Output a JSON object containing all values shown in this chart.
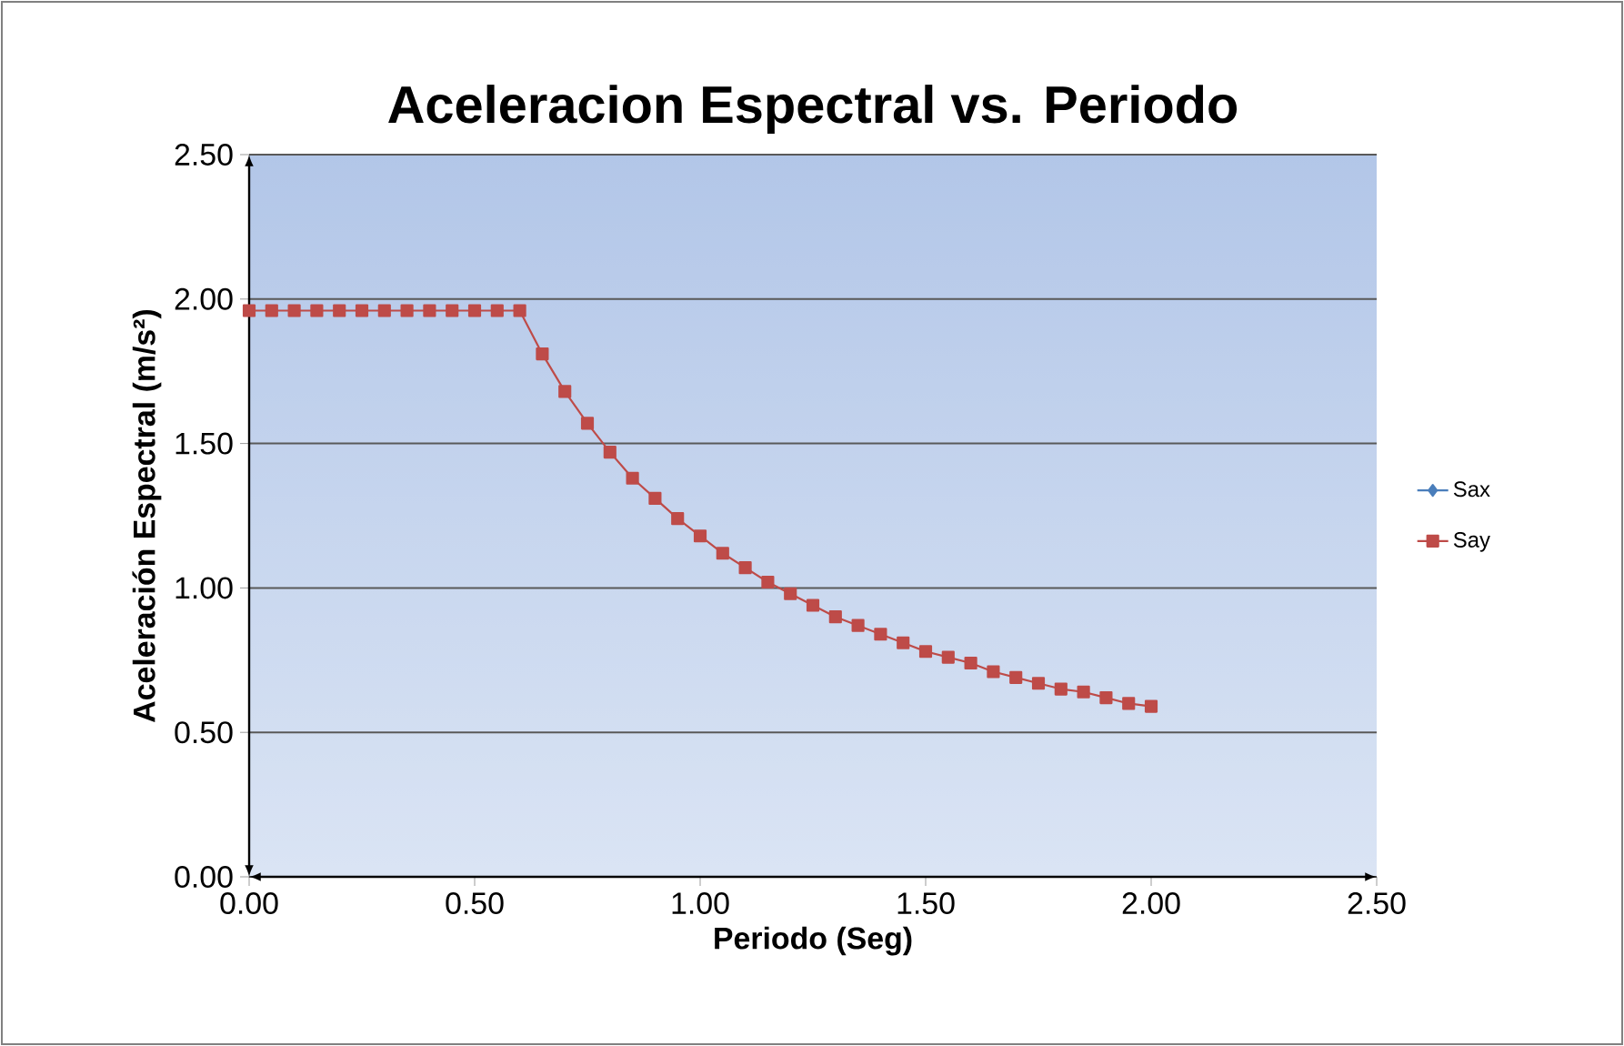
{
  "chart_data": {
    "type": "line",
    "title": "Aceleracion Espectral vs. Periodo",
    "xlabel": "Periodo (Seg)",
    "ylabel": "Aceleración Espectral (m/s²)",
    "x": [
      0,
      0.05,
      0.1,
      0.15,
      0.2,
      0.25,
      0.3,
      0.35,
      0.4,
      0.45,
      0.5,
      0.55,
      0.6,
      0.65,
      0.7,
      0.75,
      0.8,
      0.85,
      0.9,
      0.95,
      1.0,
      1.05,
      1.1,
      1.15,
      1.2,
      1.25,
      1.3,
      1.35,
      1.4,
      1.45,
      1.5,
      1.55,
      1.6,
      1.65,
      1.7,
      1.75,
      1.8,
      1.85,
      1.9,
      1.95,
      2.0
    ],
    "series": [
      {
        "name": "Sax",
        "color": "#4a7ebb",
        "marker": "diamond",
        "values": [
          null,
          null,
          null,
          null,
          null,
          null,
          null,
          null,
          null,
          null,
          null,
          null,
          null,
          null,
          null,
          null,
          null,
          null,
          null,
          null,
          null,
          null,
          null,
          null,
          null,
          null,
          null,
          null,
          null,
          null,
          null,
          null,
          null,
          null,
          null,
          null,
          null,
          null,
          null,
          null,
          null
        ]
      },
      {
        "name": "Say",
        "color": "#be4b48",
        "marker": "square",
        "values": [
          1.96,
          1.96,
          1.96,
          1.96,
          1.96,
          1.96,
          1.96,
          1.96,
          1.96,
          1.96,
          1.96,
          1.96,
          1.96,
          1.81,
          1.68,
          1.57,
          1.47,
          1.38,
          1.31,
          1.24,
          1.18,
          1.12,
          1.07,
          1.02,
          0.98,
          0.94,
          0.9,
          0.87,
          0.84,
          0.81,
          0.78,
          0.76,
          0.74,
          0.71,
          0.69,
          0.67,
          0.65,
          0.64,
          0.62,
          0.6,
          0.59
        ]
      }
    ],
    "xlim": [
      0,
      2.5
    ],
    "ylim": [
      0,
      2.5
    ],
    "xticks": [
      {
        "value": 0,
        "label": "0.00"
      },
      {
        "value": 0.5,
        "label": "0.50"
      },
      {
        "value": 1,
        "label": "1.00"
      },
      {
        "value": 1.5,
        "label": "1.50"
      },
      {
        "value": 2,
        "label": "2.00"
      },
      {
        "value": 2.5,
        "label": "2.50"
      }
    ],
    "yticks": [
      {
        "value": 0,
        "label": "0.00"
      },
      {
        "value": 0.5,
        "label": "0.50"
      },
      {
        "value": 1,
        "label": "1.00"
      },
      {
        "value": 1.5,
        "label": "1.50"
      },
      {
        "value": 2,
        "label": "2.00"
      },
      {
        "value": 2.5,
        "label": "2.50"
      }
    ],
    "grid": "y",
    "legend": "right",
    "line_style": "solid"
  }
}
